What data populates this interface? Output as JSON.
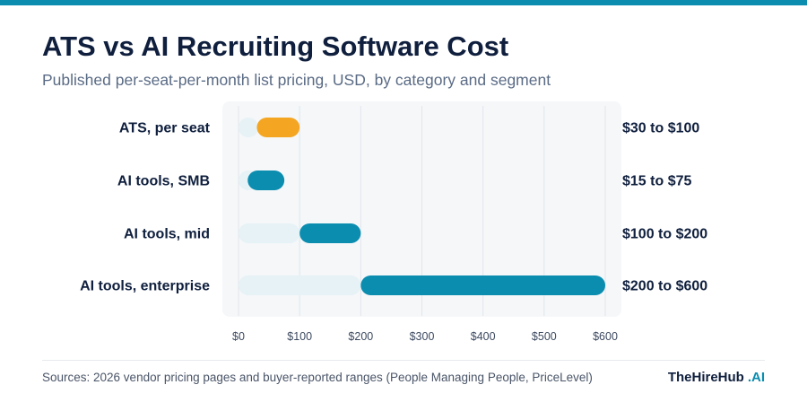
{
  "header": {
    "title": "ATS vs AI Recruiting Software Cost",
    "subtitle": "Published per-seat-per-month list pricing, USD, by category and segment"
  },
  "chart_data": {
    "type": "bar",
    "orientation": "horizontal-range",
    "categories": [
      "ATS, per seat",
      "AI tools, SMB",
      "AI tools, mid",
      "AI tools, enterprise"
    ],
    "ranges": [
      {
        "category": "ATS, per seat",
        "low": 30,
        "high": 100,
        "label": "$30 to $100",
        "color": "#f4a623"
      },
      {
        "category": "AI tools, SMB",
        "low": 15,
        "high": 75,
        "label": "$15 to $75",
        "color": "#0b8db0"
      },
      {
        "category": "AI tools, mid",
        "low": 100,
        "high": 200,
        "label": "$100 to $200",
        "color": "#0b8db0"
      },
      {
        "category": "AI tools, enterprise",
        "low": 200,
        "high": 600,
        "label": "$200 to $600",
        "color": "#0b8db0"
      }
    ],
    "track_color": "#e6f2f6",
    "xlim": [
      0,
      600
    ],
    "xticks": [
      0,
      100,
      200,
      300,
      400,
      500,
      600
    ],
    "xtick_labels": [
      "$0",
      "$100",
      "$200",
      "$300",
      "$400",
      "$500",
      "$600"
    ],
    "grid": true
  },
  "footer": {
    "source": "Sources: 2026 vendor pricing pages and buyer-reported ranges (People Managing People, PriceLevel)",
    "brand": "TheHireHub",
    "brand_suffix": ".AI"
  }
}
